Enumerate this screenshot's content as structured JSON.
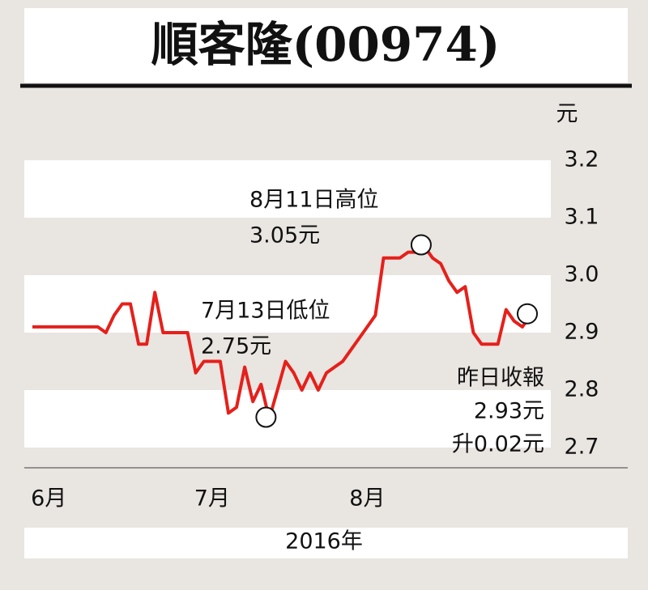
{
  "chart_data": {
    "type": "line",
    "title": "順客隆(00974)",
    "y_unit": "元",
    "xlabel": "2016年",
    "categories": [
      null,
      null,
      "6月",
      null,
      null,
      null,
      null,
      null,
      null,
      null,
      null,
      null,
      null,
      null,
      null,
      null,
      null,
      null,
      null,
      null,
      null,
      null,
      "7月",
      null,
      null,
      null,
      null,
      null,
      null,
      null,
      null,
      null,
      null,
      null,
      null,
      null,
      null,
      null,
      null,
      null,
      null,
      "8月",
      null,
      null,
      null,
      null,
      null,
      null,
      null,
      null,
      null,
      null,
      null,
      null,
      null,
      null,
      null,
      null,
      null,
      null,
      null,
      null
    ],
    "values": [
      2.91,
      2.91,
      2.91,
      2.91,
      2.91,
      2.91,
      2.91,
      2.91,
      2.91,
      2.9,
      2.93,
      2.95,
      2.95,
      2.88,
      2.88,
      2.97,
      2.9,
      2.9,
      2.9,
      2.9,
      2.83,
      2.85,
      2.85,
      2.85,
      2.76,
      2.77,
      2.84,
      2.78,
      2.81,
      2.75,
      2.8,
      2.85,
      2.83,
      2.8,
      2.83,
      2.8,
      2.83,
      2.84,
      2.85,
      2.87,
      2.89,
      2.91,
      2.93,
      3.03,
      3.03,
      3.03,
      3.04,
      3.04,
      3.05,
      3.03,
      3.02,
      2.99,
      2.97,
      2.98,
      2.9,
      2.88,
      2.88,
      2.88,
      2.94,
      2.92,
      2.91,
      2.93
    ],
    "color": "#e5201b",
    "ylim": [
      2.7,
      3.2
    ],
    "yticks": [
      3.2,
      3.1,
      {
        "value": 3.0,
        "label": "3.0"
      },
      2.9,
      2.8,
      2.7
    ],
    "annotations": [
      {
        "lines": [
          "8月11日高位",
          "3.05元"
        ]
      },
      {
        "lines": [
          "7月13日低位",
          "2.75元"
        ]
      },
      {
        "lines": [
          "昨日收報",
          "2.93元",
          "升0.02元"
        ]
      }
    ]
  }
}
